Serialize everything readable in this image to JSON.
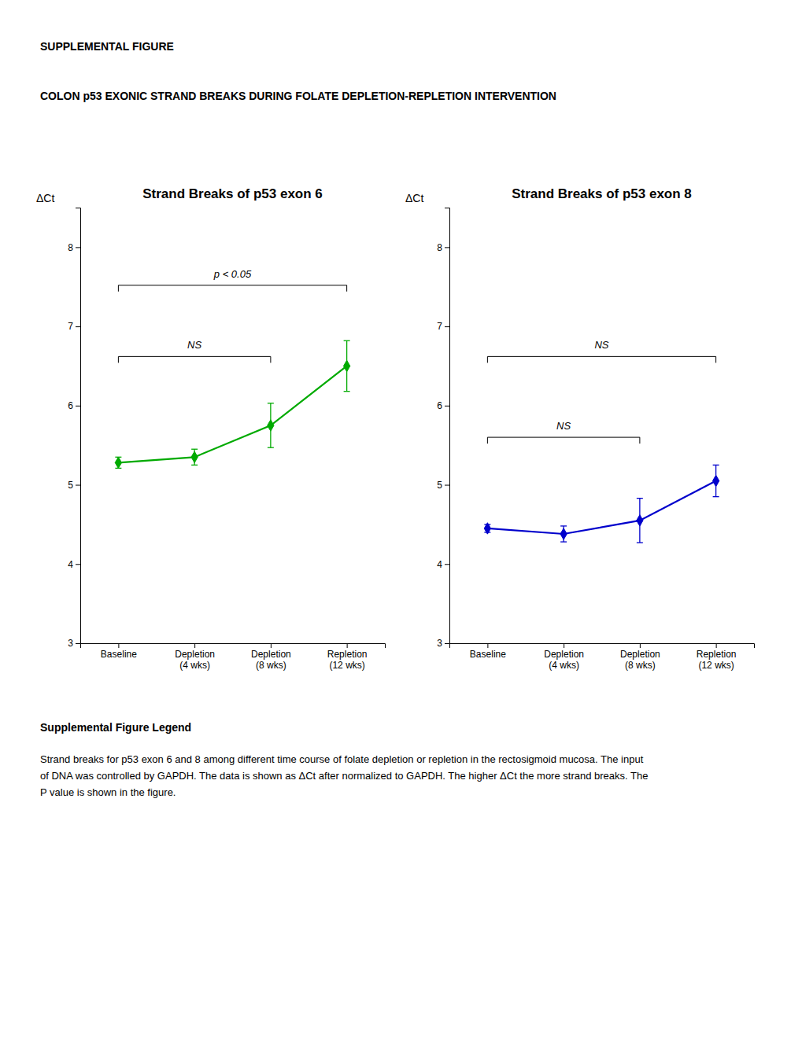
{
  "title": "SUPPLEMENTAL FIGURE",
  "subtitle": "COLON p53 EXONIC STRAND BREAKS DURING FOLATE DEPLETION-REPLETION INTERVENTION",
  "caption_title": "Supplemental Figure Legend",
  "caption": "Strand breaks for p53 exon 6 and 8 among different time course of folate depletion or repletion in the rectosigmoid mucosa. The input\nof DNA was controlled by GAPDH. The data is shown as ΔCt after normalized to GAPDH. The higher ΔCt the more strand breaks. The\nP value is shown in the figure.",
  "chart_data": [
    {
      "type": "line",
      "title": "Strand Breaks of p53 exon 6",
      "y_label": "ΔCt",
      "categories": [
        "Baseline",
        "Depletion\n(4 wks)",
        "Depletion\n(8 wks)",
        "Repletion\n(12 wks)"
      ],
      "values": [
        5.28,
        5.35,
        5.75,
        6.5
      ],
      "errors": [
        0.07,
        0.1,
        0.28,
        0.32
      ],
      "color": "#00aa00",
      "marker": "diamond",
      "line_style": "solid",
      "grid": false,
      "ylim": [
        3,
        8.5
      ],
      "yticks": [
        3,
        4,
        5,
        6,
        7,
        8
      ],
      "annotations": [
        {
          "type": "bracket",
          "from": "Baseline",
          "to": "Depletion\n(8 wks)",
          "y": 6.62,
          "label": "NS",
          "label_y": 6.72
        },
        {
          "type": "bracket",
          "from": "Baseline",
          "to": "Repletion\n(12 wks)",
          "y": 7.52,
          "label": "p < 0.05",
          "label_y": 7.62
        }
      ]
    },
    {
      "type": "line",
      "title": "Strand Breaks of p53 exon 8",
      "y_label": "ΔCt",
      "categories": [
        "Baseline",
        "Depletion\n(4 wks)",
        "Depletion\n(8 wks)",
        "Repletion\n(12 wks)"
      ],
      "values": [
        4.45,
        4.38,
        4.55,
        5.05
      ],
      "errors": [
        0.05,
        0.1,
        0.28,
        0.2
      ],
      "color": "#0000cc",
      "marker": "diamond",
      "line_style": "solid",
      "grid": false,
      "ylim": [
        3,
        8.5
      ],
      "yticks": [
        3,
        4,
        5,
        6,
        7,
        8
      ],
      "annotations": [
        {
          "type": "bracket",
          "from": "Baseline",
          "to": "Depletion\n(8 wks)",
          "y": 5.6,
          "label": "NS",
          "label_y": 5.7
        },
        {
          "type": "bracket",
          "from": "Baseline",
          "to": "Repletion\n(12 wks)",
          "y": 6.62,
          "label": "NS",
          "label_y": 6.72
        }
      ]
    }
  ]
}
